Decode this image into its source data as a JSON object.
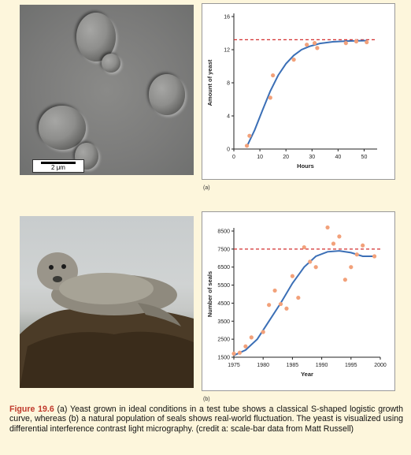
{
  "figure": {
    "number_label": "Figure 19.6",
    "caption_text": "(a) Yeast grown in ideal conditions in a test tube shows a classical S-shaped logistic growth curve, whereas (b) a natural population of seals shows real-world fluctuation. The yeast is visualized using differential interference contrast light micrography. (credit a: scale-bar data from Matt Russell)"
  },
  "panel_a": {
    "label": "(a)",
    "scale_bar_label": "2 μm"
  },
  "panel_b": {
    "label": "(b)"
  },
  "chart_data": [
    {
      "type": "scatter",
      "xlabel": "Hours",
      "ylabel": "Amount of yeast",
      "xlim": [
        0,
        55
      ],
      "ylim": [
        0,
        16
      ],
      "xticks": [
        0,
        10,
        20,
        30,
        40,
        50
      ],
      "yticks": [
        0,
        4,
        8,
        12,
        16
      ],
      "carrying_capacity": 13.2,
      "points": [
        [
          5,
          0.4
        ],
        [
          6,
          1.6
        ],
        [
          14,
          6.2
        ],
        [
          15,
          8.9
        ],
        [
          23,
          10.8
        ],
        [
          28,
          12.6
        ],
        [
          31,
          12.8
        ],
        [
          32,
          12.2
        ],
        [
          43,
          12.8
        ],
        [
          47,
          13.0
        ],
        [
          51,
          12.9
        ]
      ],
      "curve": [
        [
          5,
          0.3
        ],
        [
          8,
          2.3
        ],
        [
          11,
          4.7
        ],
        [
          14,
          7.0
        ],
        [
          17,
          8.9
        ],
        [
          20,
          10.3
        ],
        [
          23,
          11.3
        ],
        [
          26,
          12.0
        ],
        [
          29,
          12.4
        ],
        [
          33,
          12.75
        ],
        [
          38,
          12.95
        ],
        [
          44,
          13.05
        ],
        [
          51,
          13.1
        ]
      ],
      "colors": {
        "points": "#f2a17a",
        "curve": "#3b6fb6",
        "capacity": "#d32f2f"
      }
    },
    {
      "type": "scatter",
      "xlabel": "Year",
      "ylabel": "Number of seals",
      "xlim": [
        1975,
        2000
      ],
      "ylim": [
        1500,
        8500
      ],
      "xticks": [
        1975,
        1980,
        1985,
        1990,
        1995,
        2000
      ],
      "yticks": [
        1500,
        2500,
        3500,
        4500,
        5500,
        6500,
        7500,
        8500
      ],
      "carrying_capacity": 7500,
      "points": [
        [
          1975,
          1700
        ],
        [
          1976,
          1750
        ],
        [
          1977,
          2100
        ],
        [
          1978,
          2600
        ],
        [
          1980,
          2900
        ],
        [
          1981,
          4400
        ],
        [
          1982,
          5200
        ],
        [
          1983,
          4450
        ],
        [
          1984,
          4200
        ],
        [
          1985,
          6000
        ],
        [
          1986,
          4800
        ],
        [
          1987,
          7600
        ],
        [
          1988,
          6800
        ],
        [
          1989,
          6500
        ],
        [
          1991,
          8700
        ],
        [
          1992,
          7800
        ],
        [
          1993,
          8200
        ],
        [
          1994,
          5800
        ],
        [
          1995,
          6500
        ],
        [
          1996,
          7200
        ],
        [
          1997,
          7700
        ],
        [
          1999,
          7100
        ]
      ],
      "curve": [
        [
          1975,
          1600
        ],
        [
          1977,
          1900
        ],
        [
          1979,
          2500
        ],
        [
          1981,
          3500
        ],
        [
          1983,
          4500
        ],
        [
          1985,
          5600
        ],
        [
          1987,
          6500
        ],
        [
          1989,
          7100
        ],
        [
          1991,
          7350
        ],
        [
          1993,
          7400
        ],
        [
          1995,
          7300
        ],
        [
          1997,
          7100
        ],
        [
          1999,
          7100
        ]
      ],
      "colors": {
        "points": "#f2a17a",
        "curve": "#3b6fb6",
        "capacity": "#d32f2f"
      }
    }
  ]
}
